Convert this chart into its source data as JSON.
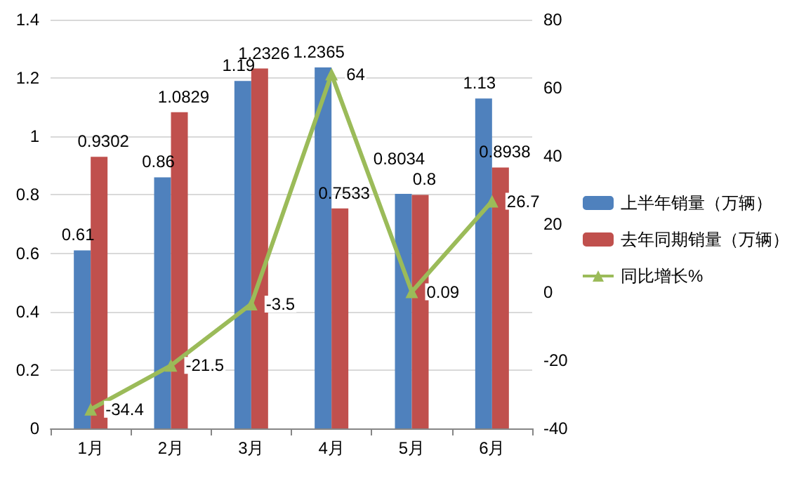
{
  "chart_data": {
    "type": "bar",
    "categories": [
      "1月",
      "2月",
      "3月",
      "4月",
      "5月",
      "6月"
    ],
    "series": [
      {
        "name": "上半年销量（万辆）",
        "color": "#4f81bd",
        "values": [
          0.61,
          0.86,
          1.19,
          1.2365,
          0.8034,
          1.13
        ]
      },
      {
        "name": "去年同期销量（万辆）",
        "color": "#c0504d",
        "values": [
          0.9302,
          1.0829,
          1.2326,
          0.7533,
          0.8,
          0.8938
        ]
      },
      {
        "name": "同比增长%",
        "type": "line",
        "axis": "y2",
        "color": "#9bbb59",
        "marker": "triangle",
        "values": [
          -34.4,
          -21.5,
          -3.5,
          64,
          0.09,
          26.7
        ]
      }
    ],
    "ylim": [
      0,
      1.4
    ],
    "yticks": [
      0,
      0.2,
      0.4,
      0.6,
      0.8,
      1,
      1.2,
      1.4
    ],
    "y2lim": [
      -40,
      80
    ],
    "y2ticks": [
      -40,
      -20,
      0,
      20,
      40,
      60,
      80
    ],
    "grid": "y",
    "legend": "right",
    "data_labels": true
  }
}
